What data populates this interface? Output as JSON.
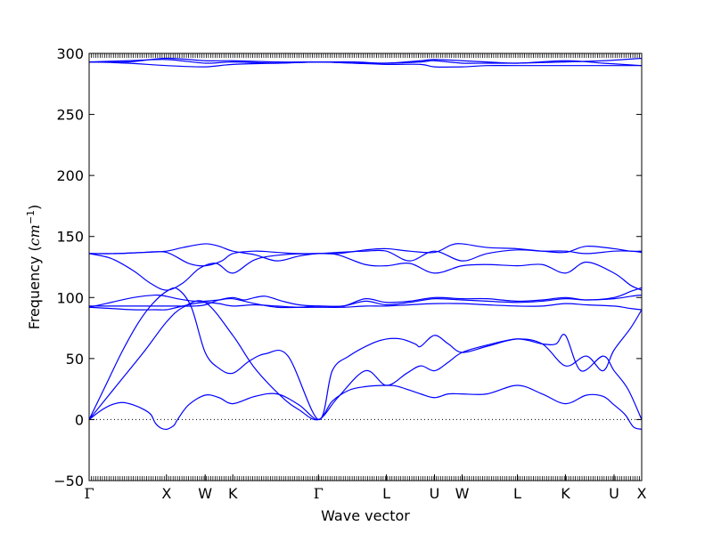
{
  "chart_data": {
    "type": "line",
    "title": "",
    "xlabel": "Wave vector",
    "ylabel": "Frequency ($cm^{-1}$)",
    "ylabel_parts": {
      "text": "Frequency (",
      "unit_base": "cm",
      "unit_exp": "−1",
      "close": ")"
    },
    "ylim": [
      -50,
      300
    ],
    "yticks": [
      -50,
      0,
      50,
      100,
      150,
      200,
      250,
      300
    ],
    "ytick_labels": [
      "−50",
      "0",
      "50",
      "100",
      "150",
      "200",
      "250",
      "300"
    ],
    "xlim": [
      0,
      1
    ],
    "high_symmetry_points": [
      {
        "label": "Γ",
        "x": 0.0
      },
      {
        "label": "X",
        "x": 0.14
      },
      {
        "label": "W",
        "x": 0.21
      },
      {
        "label": "K",
        "x": 0.26
      },
      {
        "label": "Γ",
        "x": 0.415
      },
      {
        "label": "L",
        "x": 0.538
      },
      {
        "label": "U",
        "x": 0.625
      },
      {
        "label": "W",
        "x": 0.675
      },
      {
        "label": "L",
        "x": 0.775
      },
      {
        "label": "K",
        "x": 0.862
      },
      {
        "label": "U",
        "x": 0.95
      },
      {
        "label": "X",
        "x": 1.0
      }
    ],
    "zero_line": {
      "y": 0,
      "style": "dotted"
    },
    "grid": false,
    "line_color": "#0000ff",
    "series": [
      {
        "x": [
          0,
          0.02,
          0.04,
          0.06,
          0.08,
          0.1,
          0.112,
          0.12,
          0.13,
          0.14,
          0.15,
          0.155,
          0.16,
          0.18,
          0.21,
          0.235,
          0.26,
          0.3,
          0.34,
          0.38,
          0.415,
          0.44,
          0.47,
          0.5,
          0.538,
          0.56,
          0.6,
          0.625,
          0.65,
          0.675,
          0.72,
          0.775,
          0.82,
          0.862,
          0.9,
          0.93,
          0.95,
          0.97,
          0.985,
          1.0
        ],
        "y": [
          0,
          7,
          12,
          14,
          12,
          8,
          4,
          -3,
          -7,
          -8,
          -6,
          -4,
          0,
          12,
          20,
          18,
          13,
          19,
          21,
          12,
          0,
          15,
          24,
          27,
          28,
          27,
          21,
          18,
          21,
          21,
          21,
          28,
          21,
          13,
          20,
          19,
          12,
          4,
          -6,
          -8
        ]
      },
      {
        "x": [
          0,
          0.03,
          0.06,
          0.09,
          0.115,
          0.14,
          0.16,
          0.185,
          0.21,
          0.235,
          0.26,
          0.29,
          0.32,
          0.36,
          0.415,
          0.44,
          0.47,
          0.51,
          0.538,
          0.565,
          0.59,
          0.6,
          0.625,
          0.65,
          0.675,
          0.72,
          0.775,
          0.82,
          0.845,
          0.862,
          0.89,
          0.93,
          0.95,
          0.975,
          1.0
        ],
        "y": [
          0,
          28,
          56,
          80,
          95,
          105,
          107,
          92,
          55,
          42,
          38,
          48,
          54,
          52,
          0,
          40,
          52,
          62,
          66,
          66,
          62,
          60,
          69,
          62,
          55,
          60,
          66,
          62,
          62,
          69,
          40,
          52,
          40,
          25,
          0
        ]
      },
      {
        "x": [
          0,
          0.05,
          0.1,
          0.14,
          0.17,
          0.21,
          0.26,
          0.3,
          0.35,
          0.38,
          0.415,
          0.45,
          0.5,
          0.538,
          0.575,
          0.6,
          0.625,
          0.65,
          0.675,
          0.72,
          0.775,
          0.82,
          0.862,
          0.9,
          0.93,
          0.95,
          0.98,
          1.0
        ],
        "y": [
          0,
          28,
          56,
          80,
          92,
          96,
          69,
          42,
          18,
          8,
          0,
          18,
          40,
          28,
          38,
          44,
          40,
          47,
          55,
          61,
          66,
          62,
          44,
          52,
          40,
          57,
          75,
          90
        ]
      },
      {
        "x": [
          0,
          0.04,
          0.08,
          0.12,
          0.14,
          0.16,
          0.19,
          0.21,
          0.235,
          0.26,
          0.3,
          0.34,
          0.38,
          0.415,
          0.46,
          0.5,
          0.538,
          0.58,
          0.625,
          0.675,
          0.72,
          0.775,
          0.82,
          0.862,
          0.9,
          0.95,
          0.98,
          1.0
        ],
        "y": [
          92,
          91,
          90,
          90,
          90,
          92,
          95,
          96,
          95,
          93,
          94,
          93,
          92,
          92,
          92,
          93,
          93,
          94,
          95,
          95,
          94,
          93,
          93,
          95,
          94,
          93,
          91,
          90
        ]
      },
      {
        "x": [
          0,
          0.04,
          0.08,
          0.12,
          0.14,
          0.16,
          0.19,
          0.21,
          0.235,
          0.26,
          0.3,
          0.34,
          0.38,
          0.415,
          0.46,
          0.5,
          0.538,
          0.58,
          0.625,
          0.675,
          0.72,
          0.775,
          0.82,
          0.862,
          0.9,
          0.95,
          0.98,
          1.0
        ],
        "y": [
          92,
          96,
          100,
          102,
          101,
          99,
          97,
          97,
          98,
          99,
          95,
          92,
          92,
          93,
          93,
          97,
          94,
          96,
          99,
          98,
          97,
          96,
          97,
          99,
          98,
          99,
          101,
          102
        ]
      },
      {
        "x": [
          0,
          0.04,
          0.08,
          0.12,
          0.14,
          0.16,
          0.19,
          0.21,
          0.235,
          0.26,
          0.28,
          0.3,
          0.32,
          0.35,
          0.38,
          0.415,
          0.46,
          0.5,
          0.538,
          0.58,
          0.625,
          0.675,
          0.72,
          0.775,
          0.82,
          0.862,
          0.9,
          0.95,
          0.98,
          1.0
        ],
        "y": [
          93,
          93,
          93,
          93,
          93,
          93,
          93,
          94,
          98,
          100,
          98,
          100,
          101,
          97,
          94,
          93,
          93,
          99,
          96,
          97,
          100,
          99,
          99,
          97,
          98,
          100,
          98,
          100,
          105,
          108
        ]
      },
      {
        "x": [
          0,
          0.04,
          0.08,
          0.11,
          0.14,
          0.17,
          0.2,
          0.23,
          0.26,
          0.3,
          0.35,
          0.415,
          0.45,
          0.5,
          0.538,
          0.58,
          0.625,
          0.675,
          0.72,
          0.775,
          0.82,
          0.862,
          0.9,
          0.95,
          0.98,
          1.0
        ],
        "y": [
          136,
          132,
          122,
          112,
          106,
          112,
          124,
          128,
          120,
          131,
          135,
          136,
          135,
          127,
          126,
          128,
          120,
          126,
          127,
          126,
          127,
          120,
          129,
          120,
          110,
          106
        ]
      },
      {
        "x": [
          0,
          0.05,
          0.1,
          0.14,
          0.18,
          0.21,
          0.24,
          0.26,
          0.3,
          0.34,
          0.38,
          0.415,
          0.45,
          0.5,
          0.538,
          0.58,
          0.625,
          0.675,
          0.72,
          0.775,
          0.82,
          0.862,
          0.9,
          0.95,
          0.98,
          1.0
        ],
        "y": [
          136,
          136,
          137,
          137,
          128,
          126,
          130,
          136,
          138,
          137,
          136,
          136,
          137,
          138,
          138,
          130,
          138,
          130,
          136,
          139,
          138,
          138,
          136,
          138,
          138,
          137
        ]
      },
      {
        "x": [
          0,
          0.05,
          0.1,
          0.14,
          0.17,
          0.21,
          0.235,
          0.26,
          0.3,
          0.34,
          0.38,
          0.415,
          0.45,
          0.5,
          0.538,
          0.58,
          0.625,
          0.655,
          0.675,
          0.72,
          0.775,
          0.82,
          0.862,
          0.9,
          0.95,
          0.98,
          1.0
        ],
        "y": [
          136,
          136,
          137,
          138,
          141,
          144,
          142,
          138,
          135,
          130,
          134,
          136,
          136,
          139,
          140,
          138,
          137,
          143,
          144,
          141,
          140,
          138,
          137,
          142,
          140,
          138,
          138
        ]
      },
      {
        "x": [
          0,
          0.07,
          0.14,
          0.21,
          0.26,
          0.34,
          0.415,
          0.48,
          0.538,
          0.6,
          0.625,
          0.675,
          0.72,
          0.775,
          0.862,
          0.93,
          1.0
        ],
        "y": [
          293,
          292,
          290,
          289,
          291,
          292,
          293,
          292,
          291,
          291,
          289,
          289,
          290,
          290,
          290,
          290,
          290
        ]
      },
      {
        "x": [
          0,
          0.07,
          0.14,
          0.21,
          0.26,
          0.34,
          0.415,
          0.48,
          0.538,
          0.6,
          0.625,
          0.675,
          0.72,
          0.775,
          0.862,
          0.93,
          1.0
        ],
        "y": [
          293,
          294,
          295,
          292,
          293,
          292,
          293,
          292,
          292,
          293,
          294,
          292,
          292,
          292,
          293,
          294,
          296
        ]
      },
      {
        "x": [
          0,
          0.07,
          0.14,
          0.21,
          0.26,
          0.34,
          0.415,
          0.48,
          0.538,
          0.6,
          0.625,
          0.675,
          0.72,
          0.775,
          0.862,
          0.93,
          1.0
        ],
        "y": [
          293,
          293,
          296,
          294,
          294,
          293,
          293,
          293,
          292,
          294,
          295,
          294,
          293,
          292,
          294,
          292,
          290
        ]
      }
    ]
  }
}
